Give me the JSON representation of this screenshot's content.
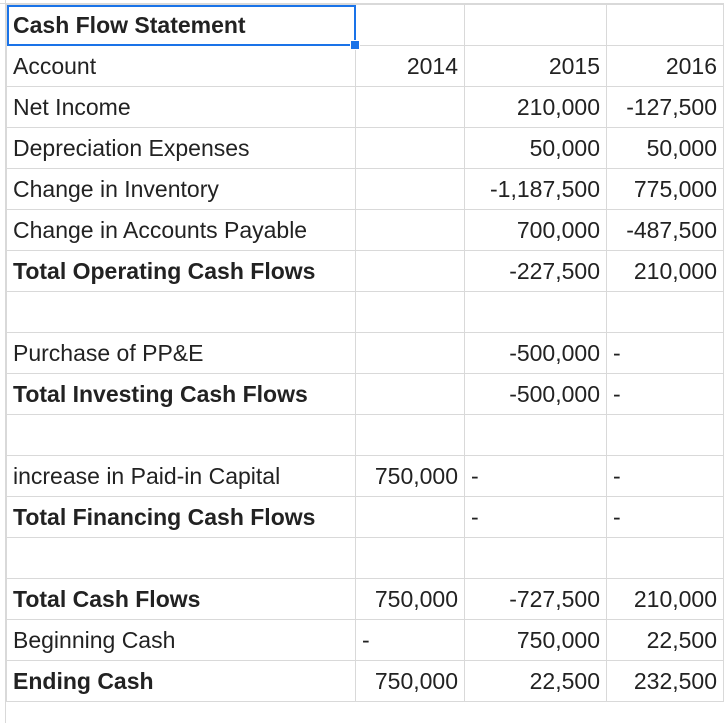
{
  "sheet": {
    "title": "Cash Flow Statement",
    "header": {
      "account": "Account",
      "y2014": "2014",
      "y2015": "2015",
      "y2016": "2016"
    },
    "rows": [
      {
        "label": "Net Income",
        "y2014": "",
        "y2015": "210,000",
        "y2016": "-127,500"
      },
      {
        "label": "Depreciation Expenses",
        "y2014": "",
        "y2015": "50,000",
        "y2016": "50,000"
      },
      {
        "label": "Change in Inventory",
        "y2014": "",
        "y2015": "-1,187,500",
        "y2016": "775,000"
      },
      {
        "label": "Change in Accounts Payable",
        "y2014": "",
        "y2015": "700,000",
        "y2016": "-487,500"
      },
      {
        "label": "Total Operating Cash Flows",
        "y2014": "",
        "y2015": "-227,500",
        "y2016": "210,000"
      },
      {
        "label": "",
        "y2014": "",
        "y2015": "",
        "y2016": ""
      },
      {
        "label": "Purchase of PP&E",
        "y2014": "",
        "y2015": "-500,000",
        "y2016": "-"
      },
      {
        "label": "Total Investing Cash Flows",
        "y2014": "",
        "y2015": "-500,000",
        "y2016": "-"
      },
      {
        "label": "",
        "y2014": "",
        "y2015": "",
        "y2016": ""
      },
      {
        "label": "increase in Paid-in Capital",
        "y2014": "750,000",
        "y2015": "-",
        "y2016": "-"
      },
      {
        "label": "Total Financing Cash Flows",
        "y2014": "",
        "y2015": "-",
        "y2016": "-"
      },
      {
        "label": "",
        "y2014": "",
        "y2015": "",
        "y2016": ""
      },
      {
        "label": "Total Cash Flows",
        "y2014": "750,000",
        "y2015": "-727,500",
        "y2016": "210,000"
      },
      {
        "label": "Beginning Cash",
        "y2014": "-",
        "y2015": "750,000",
        "y2016": "22,500"
      },
      {
        "label": "Ending Cash",
        "y2014": "750,000",
        "y2015": "22,500",
        "y2016": "232,500"
      }
    ]
  }
}
